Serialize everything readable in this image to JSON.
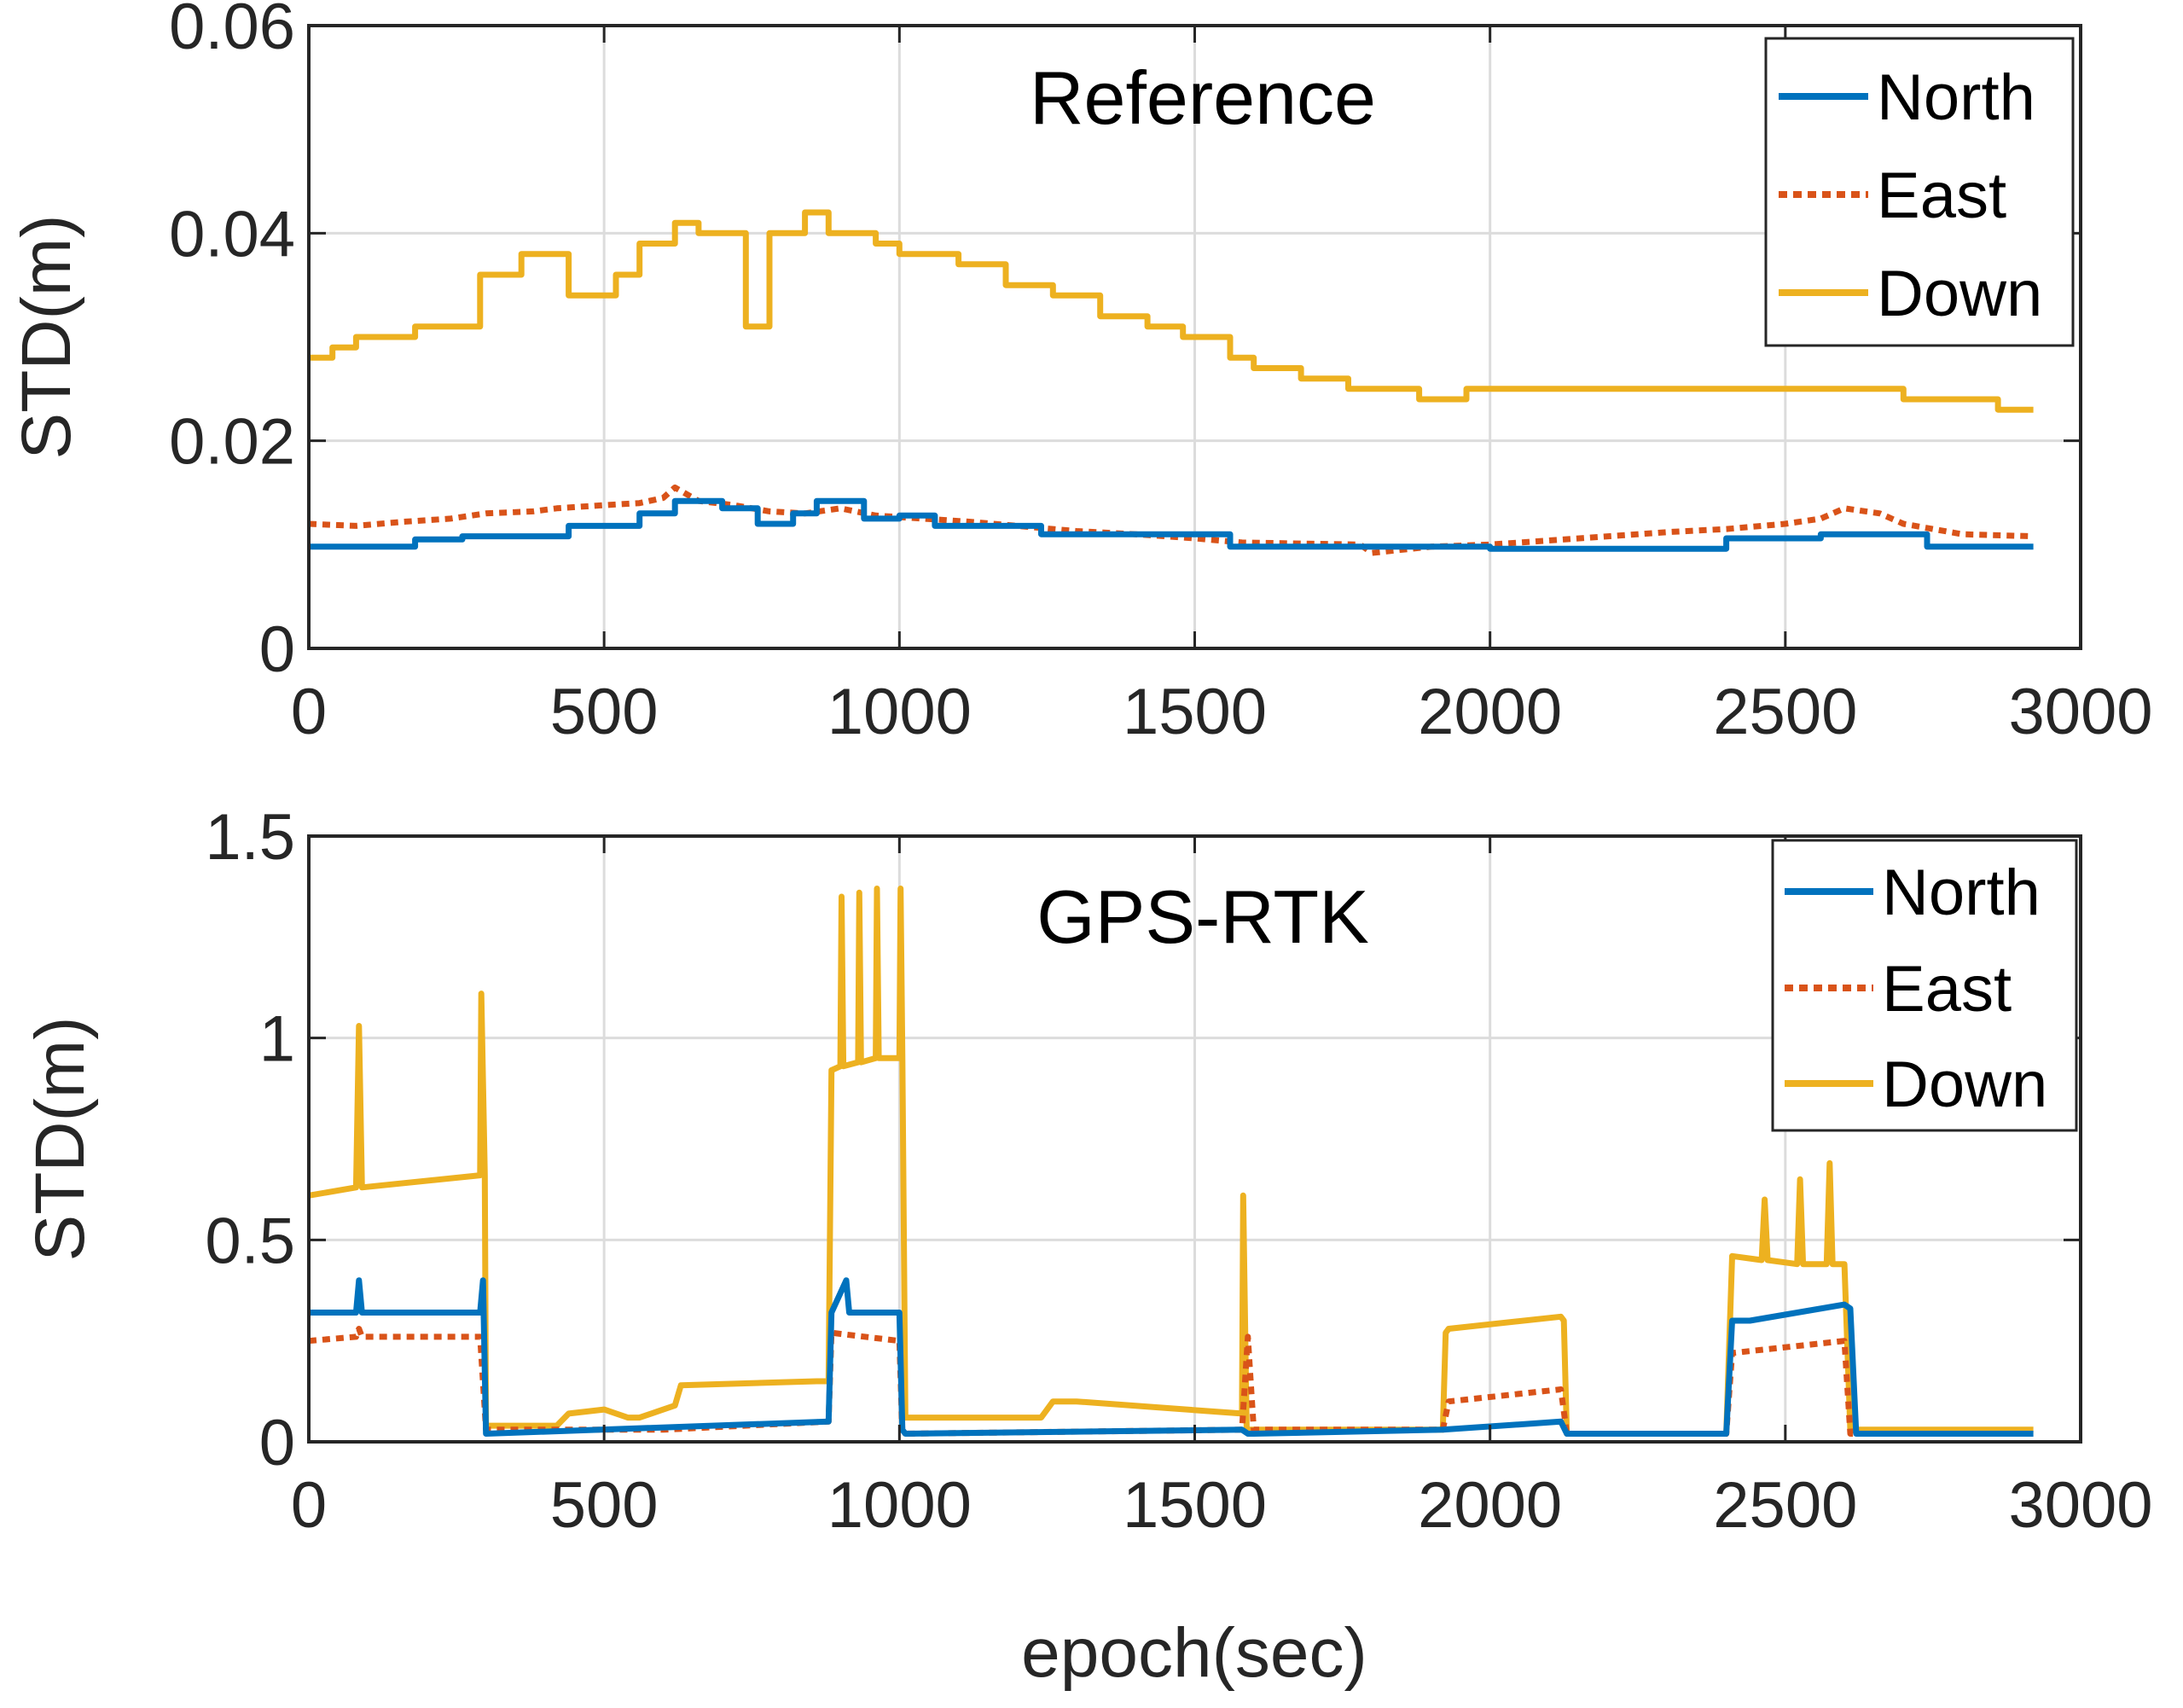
{
  "figure": {
    "xlabel": "epoch(sec)",
    "ylabel": "STD(m)"
  },
  "chart_data": [
    {
      "type": "line",
      "title": "Reference",
      "xlabel": "",
      "ylabel": "STD(m)",
      "xlim": [
        0,
        3000
      ],
      "ylim": [
        0,
        0.06
      ],
      "xticks": [
        "0",
        "500",
        "1000",
        "1500",
        "2000",
        "2500",
        "3000"
      ],
      "yticks": [
        "0",
        "0.02",
        "0.04",
        "0.06"
      ],
      "grid": true,
      "legend_position": "top-right",
      "series": [
        {
          "name": "North",
          "color": "#0072BD",
          "style": "solid",
          "x": [
            0,
            180,
            180,
            260,
            260,
            440,
            440,
            560,
            560,
            620,
            620,
            700,
            700,
            760,
            760,
            820,
            820,
            860,
            860,
            940,
            940,
            1000,
            1000,
            1060,
            1060,
            1240,
            1240,
            1560,
            1560,
            2000,
            2000,
            2400,
            2400,
            2560,
            2560,
            2740,
            2740,
            2920
          ],
          "y": [
            0.0098,
            0.0098,
            0.0105,
            0.0105,
            0.0108,
            0.0108,
            0.0118,
            0.0118,
            0.013,
            0.013,
            0.0142,
            0.0142,
            0.0135,
            0.0135,
            0.012,
            0.012,
            0.013,
            0.013,
            0.0142,
            0.0142,
            0.0125,
            0.0125,
            0.0128,
            0.0128,
            0.0118,
            0.0118,
            0.011,
            0.011,
            0.0098,
            0.0098,
            0.0096,
            0.0096,
            0.0106,
            0.0106,
            0.011,
            0.011,
            0.0098,
            0.0098
          ]
        },
        {
          "name": "East",
          "color": "#D95319",
          "style": "dotted",
          "x": [
            0,
            80,
            160,
            240,
            300,
            380,
            420,
            500,
            560,
            600,
            620,
            660,
            720,
            780,
            840,
            900,
            960,
            1040,
            1120,
            1200,
            1260,
            1300,
            1400,
            1500,
            1580,
            1680,
            1780,
            1800,
            1900,
            2000,
            2100,
            2200,
            2300,
            2400,
            2500,
            2560,
            2600,
            2660,
            2700,
            2800,
            2920
          ],
          "y": [
            0.012,
            0.0118,
            0.0122,
            0.0125,
            0.013,
            0.0132,
            0.0135,
            0.0138,
            0.014,
            0.0145,
            0.0155,
            0.0142,
            0.0138,
            0.0132,
            0.013,
            0.0135,
            0.0128,
            0.0125,
            0.0122,
            0.0118,
            0.0115,
            0.0113,
            0.011,
            0.0106,
            0.0102,
            0.0101,
            0.01,
            0.0092,
            0.0098,
            0.01,
            0.0104,
            0.0108,
            0.0112,
            0.0115,
            0.012,
            0.0125,
            0.0135,
            0.013,
            0.012,
            0.011,
            0.0108
          ]
        },
        {
          "name": "Down",
          "color": "#EDB120",
          "style": "solid",
          "x": [
            0,
            40,
            40,
            80,
            80,
            180,
            180,
            290,
            290,
            360,
            360,
            440,
            440,
            520,
            520,
            560,
            560,
            620,
            620,
            660,
            660,
            740,
            740,
            780,
            780,
            840,
            840,
            880,
            880,
            960,
            960,
            1000,
            1000,
            1100,
            1100,
            1180,
            1180,
            1260,
            1260,
            1340,
            1340,
            1420,
            1420,
            1480,
            1480,
            1560,
            1560,
            1600,
            1600,
            1680,
            1680,
            1760,
            1760,
            1880,
            1880,
            1960,
            1960,
            2160,
            2160,
            2700,
            2700,
            2860,
            2860,
            2920
          ],
          "y": [
            0.028,
            0.028,
            0.029,
            0.029,
            0.03,
            0.03,
            0.031,
            0.031,
            0.036,
            0.036,
            0.038,
            0.038,
            0.034,
            0.034,
            0.036,
            0.036,
            0.039,
            0.039,
            0.041,
            0.041,
            0.04,
            0.04,
            0.031,
            0.031,
            0.04,
            0.04,
            0.042,
            0.042,
            0.04,
            0.04,
            0.039,
            0.039,
            0.038,
            0.038,
            0.037,
            0.037,
            0.035,
            0.035,
            0.034,
            0.034,
            0.032,
            0.032,
            0.031,
            0.031,
            0.03,
            0.03,
            0.028,
            0.028,
            0.027,
            0.027,
            0.026,
            0.026,
            0.025,
            0.025,
            0.024,
            0.024,
            0.025,
            0.025,
            0.025,
            0.025,
            0.024,
            0.024,
            0.023,
            0.023
          ]
        }
      ]
    },
    {
      "type": "line",
      "title": "GPS-RTK",
      "xlabel": "epoch(sec)",
      "ylabel": "STD(m)",
      "xlim": [
        0,
        3000
      ],
      "ylim": [
        0,
        1.5
      ],
      "xticks": [
        "0",
        "500",
        "1000",
        "1500",
        "2000",
        "2500",
        "3000"
      ],
      "yticks": [
        "0",
        "0.5",
        "1",
        "1.5"
      ],
      "grid": true,
      "legend_position": "top-right",
      "series": [
        {
          "name": "North",
          "color": "#0072BD",
          "style": "solid",
          "x": [
            0,
            80,
            85,
            90,
            290,
            295,
            300,
            880,
            885,
            910,
            915,
            1000,
            1005,
            1010,
            1580,
            1590,
            1600,
            1920,
            2120,
            2130,
            2400,
            2410,
            2440,
            2600,
            2610,
            2620,
            2920
          ],
          "y": [
            0.32,
            0.32,
            0.4,
            0.32,
            0.32,
            0.4,
            0.02,
            0.05,
            0.32,
            0.4,
            0.32,
            0.32,
            0.03,
            0.02,
            0.03,
            0.02,
            0.02,
            0.03,
            0.05,
            0.02,
            0.02,
            0.3,
            0.3,
            0.34,
            0.33,
            0.02,
            0.02
          ]
        },
        {
          "name": "East",
          "color": "#D95319",
          "style": "dotted",
          "x": [
            0,
            80,
            85,
            90,
            290,
            300,
            600,
            880,
            885,
            1000,
            1005,
            1580,
            1590,
            1600,
            1920,
            1930,
            2120,
            2130,
            2400,
            2410,
            2600,
            2610,
            2920
          ],
          "y": [
            0.25,
            0.26,
            0.28,
            0.26,
            0.26,
            0.03,
            0.03,
            0.05,
            0.27,
            0.25,
            0.02,
            0.03,
            0.26,
            0.03,
            0.03,
            0.1,
            0.13,
            0.02,
            0.02,
            0.22,
            0.25,
            0.02,
            0.02
          ]
        },
        {
          "name": "Down",
          "color": "#EDB120",
          "style": "solid",
          "x": [
            0,
            80,
            85,
            90,
            290,
            292,
            298,
            300,
            420,
            440,
            500,
            540,
            560,
            620,
            630,
            860,
            880,
            885,
            900,
            902,
            905,
            930,
            932,
            935,
            960,
            962,
            965,
            1000,
            1002,
            1005,
            1010,
            1240,
            1260,
            1300,
            1580,
            1582,
            1588,
            1600,
            1920,
            1925,
            1930,
            2120,
            2125,
            2130,
            2400,
            2410,
            2460,
            2465,
            2470,
            2520,
            2525,
            2530,
            2570,
            2575,
            2580,
            2600,
            2610,
            2920
          ],
          "y": [
            0.61,
            0.63,
            1.03,
            0.63,
            0.66,
            1.11,
            0.66,
            0.04,
            0.04,
            0.07,
            0.08,
            0.06,
            0.06,
            0.09,
            0.14,
            0.15,
            0.15,
            0.92,
            0.93,
            1.35,
            0.93,
            0.94,
            1.36,
            0.94,
            0.95,
            1.37,
            0.95,
            0.95,
            1.37,
            0.95,
            0.06,
            0.06,
            0.1,
            0.1,
            0.07,
            0.61,
            0.03,
            0.03,
            0.03,
            0.27,
            0.28,
            0.31,
            0.3,
            0.02,
            0.02,
            0.46,
            0.45,
            0.6,
            0.45,
            0.44,
            0.65,
            0.44,
            0.44,
            0.69,
            0.44,
            0.44,
            0.03,
            0.03
          ]
        }
      ]
    }
  ]
}
